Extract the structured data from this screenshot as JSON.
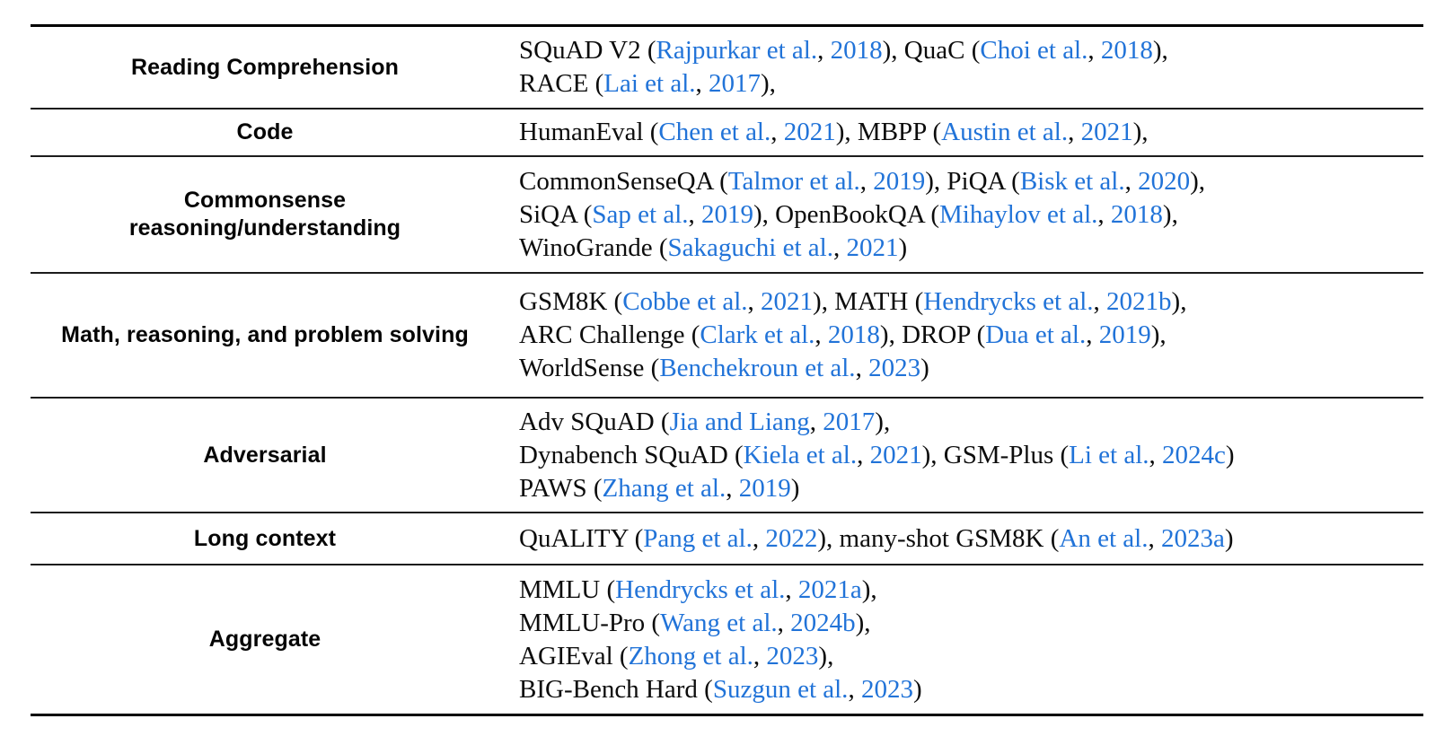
{
  "colors": {
    "link_blue": "#2173d8",
    "text_black": "#0c0c0c",
    "rule_black": "#000000"
  },
  "table": {
    "rows": [
      {
        "category": "Reading Comprehension",
        "lines": [
          [
            {
              "t": "SQuAD V2 ("
            },
            {
              "t": "Rajpurkar et al.",
              "link": true
            },
            {
              "t": ", "
            },
            {
              "t": "2018",
              "link": true
            },
            {
              "t": "), QuaC ("
            },
            {
              "t": "Choi et al.",
              "link": true
            },
            {
              "t": ", "
            },
            {
              "t": "2018",
              "link": true
            },
            {
              "t": "),"
            }
          ],
          [
            {
              "t": "RACE ("
            },
            {
              "t": "Lai et al.",
              "link": true
            },
            {
              "t": ", "
            },
            {
              "t": "2017",
              "link": true
            },
            {
              "t": "),"
            }
          ]
        ]
      },
      {
        "category": "Code",
        "lines": [
          [
            {
              "t": "HumanEval ("
            },
            {
              "t": "Chen et al.",
              "link": true
            },
            {
              "t": ", "
            },
            {
              "t": "2021",
              "link": true
            },
            {
              "t": "), MBPP ("
            },
            {
              "t": "Austin et al.",
              "link": true
            },
            {
              "t": ", "
            },
            {
              "t": "2021",
              "link": true
            },
            {
              "t": "),"
            }
          ]
        ]
      },
      {
        "category": "Commonsense\nreasoning/understanding",
        "lines": [
          [
            {
              "t": "CommonSenseQA ("
            },
            {
              "t": "Talmor et al.",
              "link": true
            },
            {
              "t": ", "
            },
            {
              "t": "2019",
              "link": true
            },
            {
              "t": "), PiQA ("
            },
            {
              "t": "Bisk et al.",
              "link": true
            },
            {
              "t": ", "
            },
            {
              "t": "2020",
              "link": true
            },
            {
              "t": "),"
            }
          ],
          [
            {
              "t": "SiQA ("
            },
            {
              "t": "Sap et al.",
              "link": true
            },
            {
              "t": ", "
            },
            {
              "t": "2019",
              "link": true
            },
            {
              "t": "), OpenBookQA ("
            },
            {
              "t": "Mihaylov et al.",
              "link": true
            },
            {
              "t": ", "
            },
            {
              "t": "2018",
              "link": true
            },
            {
              "t": "),"
            }
          ],
          [
            {
              "t": "WinoGrande ("
            },
            {
              "t": "Sakaguchi et al.",
              "link": true
            },
            {
              "t": ", "
            },
            {
              "t": "2021",
              "link": true
            },
            {
              "t": ")"
            }
          ]
        ]
      },
      {
        "category": "Math, reasoning, and problem solving",
        "lines": [
          [
            {
              "t": "GSM8K ("
            },
            {
              "t": "Cobbe et al.",
              "link": true
            },
            {
              "t": ", "
            },
            {
              "t": "2021",
              "link": true
            },
            {
              "t": "), MATH ("
            },
            {
              "t": "Hendrycks et al.",
              "link": true
            },
            {
              "t": ", "
            },
            {
              "t": "2021b",
              "link": true
            },
            {
              "t": "),"
            }
          ],
          [
            {
              "t": "ARC Challenge ("
            },
            {
              "t": "Clark et al.",
              "link": true
            },
            {
              "t": ", "
            },
            {
              "t": "2018",
              "link": true
            },
            {
              "t": "), DROP ("
            },
            {
              "t": "Dua et al.",
              "link": true
            },
            {
              "t": ", "
            },
            {
              "t": "2019",
              "link": true
            },
            {
              "t": "),"
            }
          ],
          [
            {
              "t": "WorldSense ("
            },
            {
              "t": "Benchekroun et al.",
              "link": true
            },
            {
              "t": ", "
            },
            {
              "t": "2023",
              "link": true
            },
            {
              "t": ")"
            }
          ]
        ]
      },
      {
        "category": "Adversarial",
        "lines": [
          [
            {
              "t": "Adv SQuAD ("
            },
            {
              "t": "Jia and Liang",
              "link": true
            },
            {
              "t": ", "
            },
            {
              "t": "2017",
              "link": true
            },
            {
              "t": "),"
            }
          ],
          [
            {
              "t": "Dynabench SQuAD ("
            },
            {
              "t": "Kiela et al.",
              "link": true
            },
            {
              "t": ", "
            },
            {
              "t": "2021",
              "link": true
            },
            {
              "t": "), GSM-Plus ("
            },
            {
              "t": "Li et al.",
              "link": true
            },
            {
              "t": ", "
            },
            {
              "t": "2024c",
              "link": true
            },
            {
              "t": ")"
            }
          ],
          [
            {
              "t": "PAWS ("
            },
            {
              "t": "Zhang et al.",
              "link": true
            },
            {
              "t": ", "
            },
            {
              "t": "2019",
              "link": true
            },
            {
              "t": ")"
            }
          ]
        ]
      },
      {
        "category": "Long context",
        "lines": [
          [
            {
              "t": "QuALITY ("
            },
            {
              "t": "Pang et al.",
              "link": true
            },
            {
              "t": ", "
            },
            {
              "t": "2022",
              "link": true
            },
            {
              "t": "), many-shot GSM8K ("
            },
            {
              "t": "An et al.",
              "link": true
            },
            {
              "t": ", "
            },
            {
              "t": "2023a",
              "link": true
            },
            {
              "t": ")"
            }
          ]
        ]
      },
      {
        "category": "Aggregate",
        "lines": [
          [
            {
              "t": "MMLU ("
            },
            {
              "t": "Hendrycks et al.",
              "link": true
            },
            {
              "t": ", "
            },
            {
              "t": "2021a",
              "link": true
            },
            {
              "t": "),"
            }
          ],
          [
            {
              "t": "MMLU-Pro ("
            },
            {
              "t": "Wang et al.",
              "link": true
            },
            {
              "t": ", "
            },
            {
              "t": "2024b",
              "link": true
            },
            {
              "t": "),"
            }
          ],
          [
            {
              "t": "AGIEval ("
            },
            {
              "t": "Zhong et al.",
              "link": true
            },
            {
              "t": ", "
            },
            {
              "t": "2023",
              "link": true
            },
            {
              "t": "),"
            }
          ],
          [
            {
              "t": "BIG-Bench Hard ("
            },
            {
              "t": "Suzgun et al.",
              "link": true
            },
            {
              "t": ", "
            },
            {
              "t": "2023",
              "link": true
            },
            {
              "t": ")"
            }
          ]
        ]
      }
    ]
  }
}
